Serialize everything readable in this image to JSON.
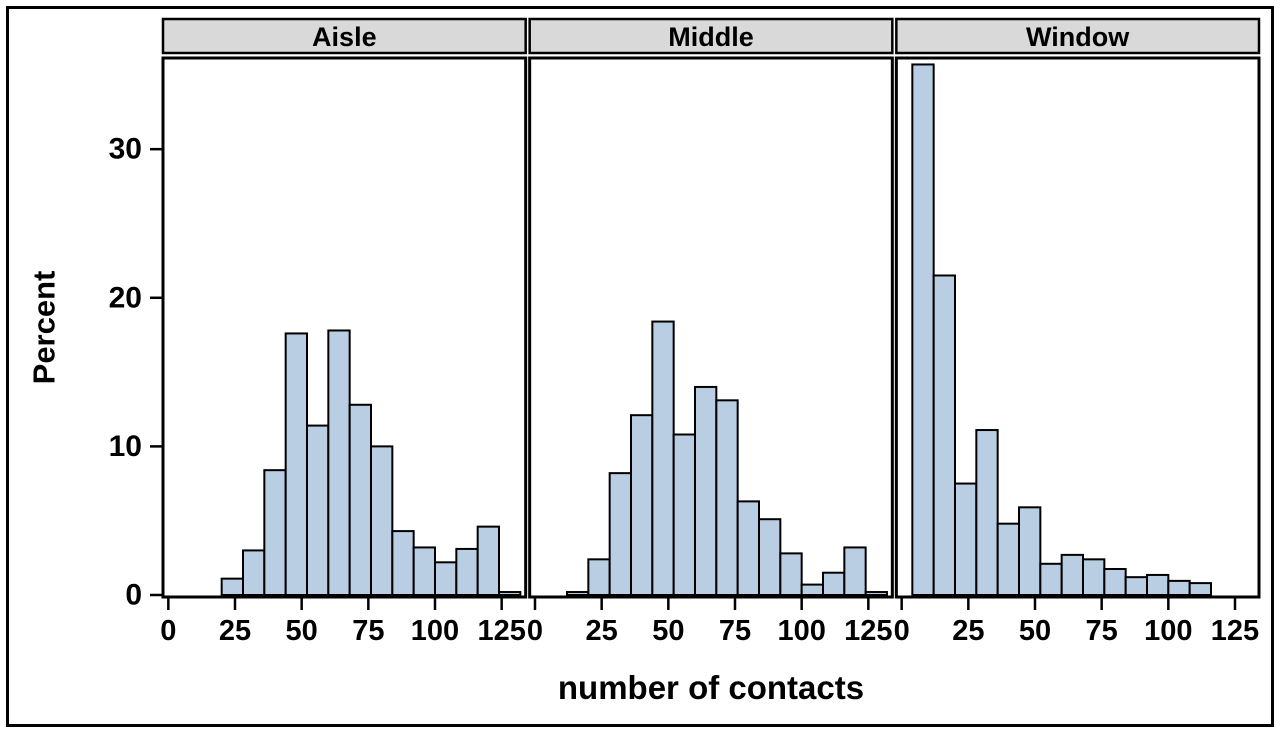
{
  "chart_data": {
    "type": "bar",
    "subtype": "faceted_histogram",
    "title": "",
    "xlabel": "number of contacts",
    "ylabel": "Percent",
    "x_ticks": [
      0,
      25,
      50,
      75,
      100,
      125
    ],
    "y_ticks": [
      0,
      10,
      20,
      30
    ],
    "xlim": [
      -2,
      134
    ],
    "ylim": [
      0,
      36
    ],
    "bin_width": 8,
    "grid": false,
    "legend": false,
    "panels": [
      {
        "label": "Aisle",
        "bin_start": 20,
        "values": [
          1.1,
          3.0,
          8.4,
          17.6,
          11.4,
          17.8,
          12.8,
          10.0,
          4.3,
          3.2,
          2.2,
          3.1,
          4.6,
          0.2
        ]
      },
      {
        "label": "Middle",
        "bin_start": 12,
        "values": [
          0.2,
          2.4,
          8.2,
          12.1,
          18.4,
          10.8,
          14.0,
          13.1,
          6.3,
          5.1,
          2.8,
          0.7,
          1.5,
          3.2,
          0.2
        ]
      },
      {
        "label": "Window",
        "bin_start": 4,
        "values": [
          35.7,
          21.5,
          7.5,
          11.1,
          4.8,
          5.9,
          2.1,
          2.7,
          2.4,
          1.75,
          1.2,
          1.35,
          0.95,
          0.8
        ]
      }
    ],
    "colors": {
      "bar_fill": "#b9cde3",
      "bar_stroke": "#000000",
      "header_fill": "#d9d9d9",
      "line": "#000000",
      "background": "#ffffff"
    }
  }
}
